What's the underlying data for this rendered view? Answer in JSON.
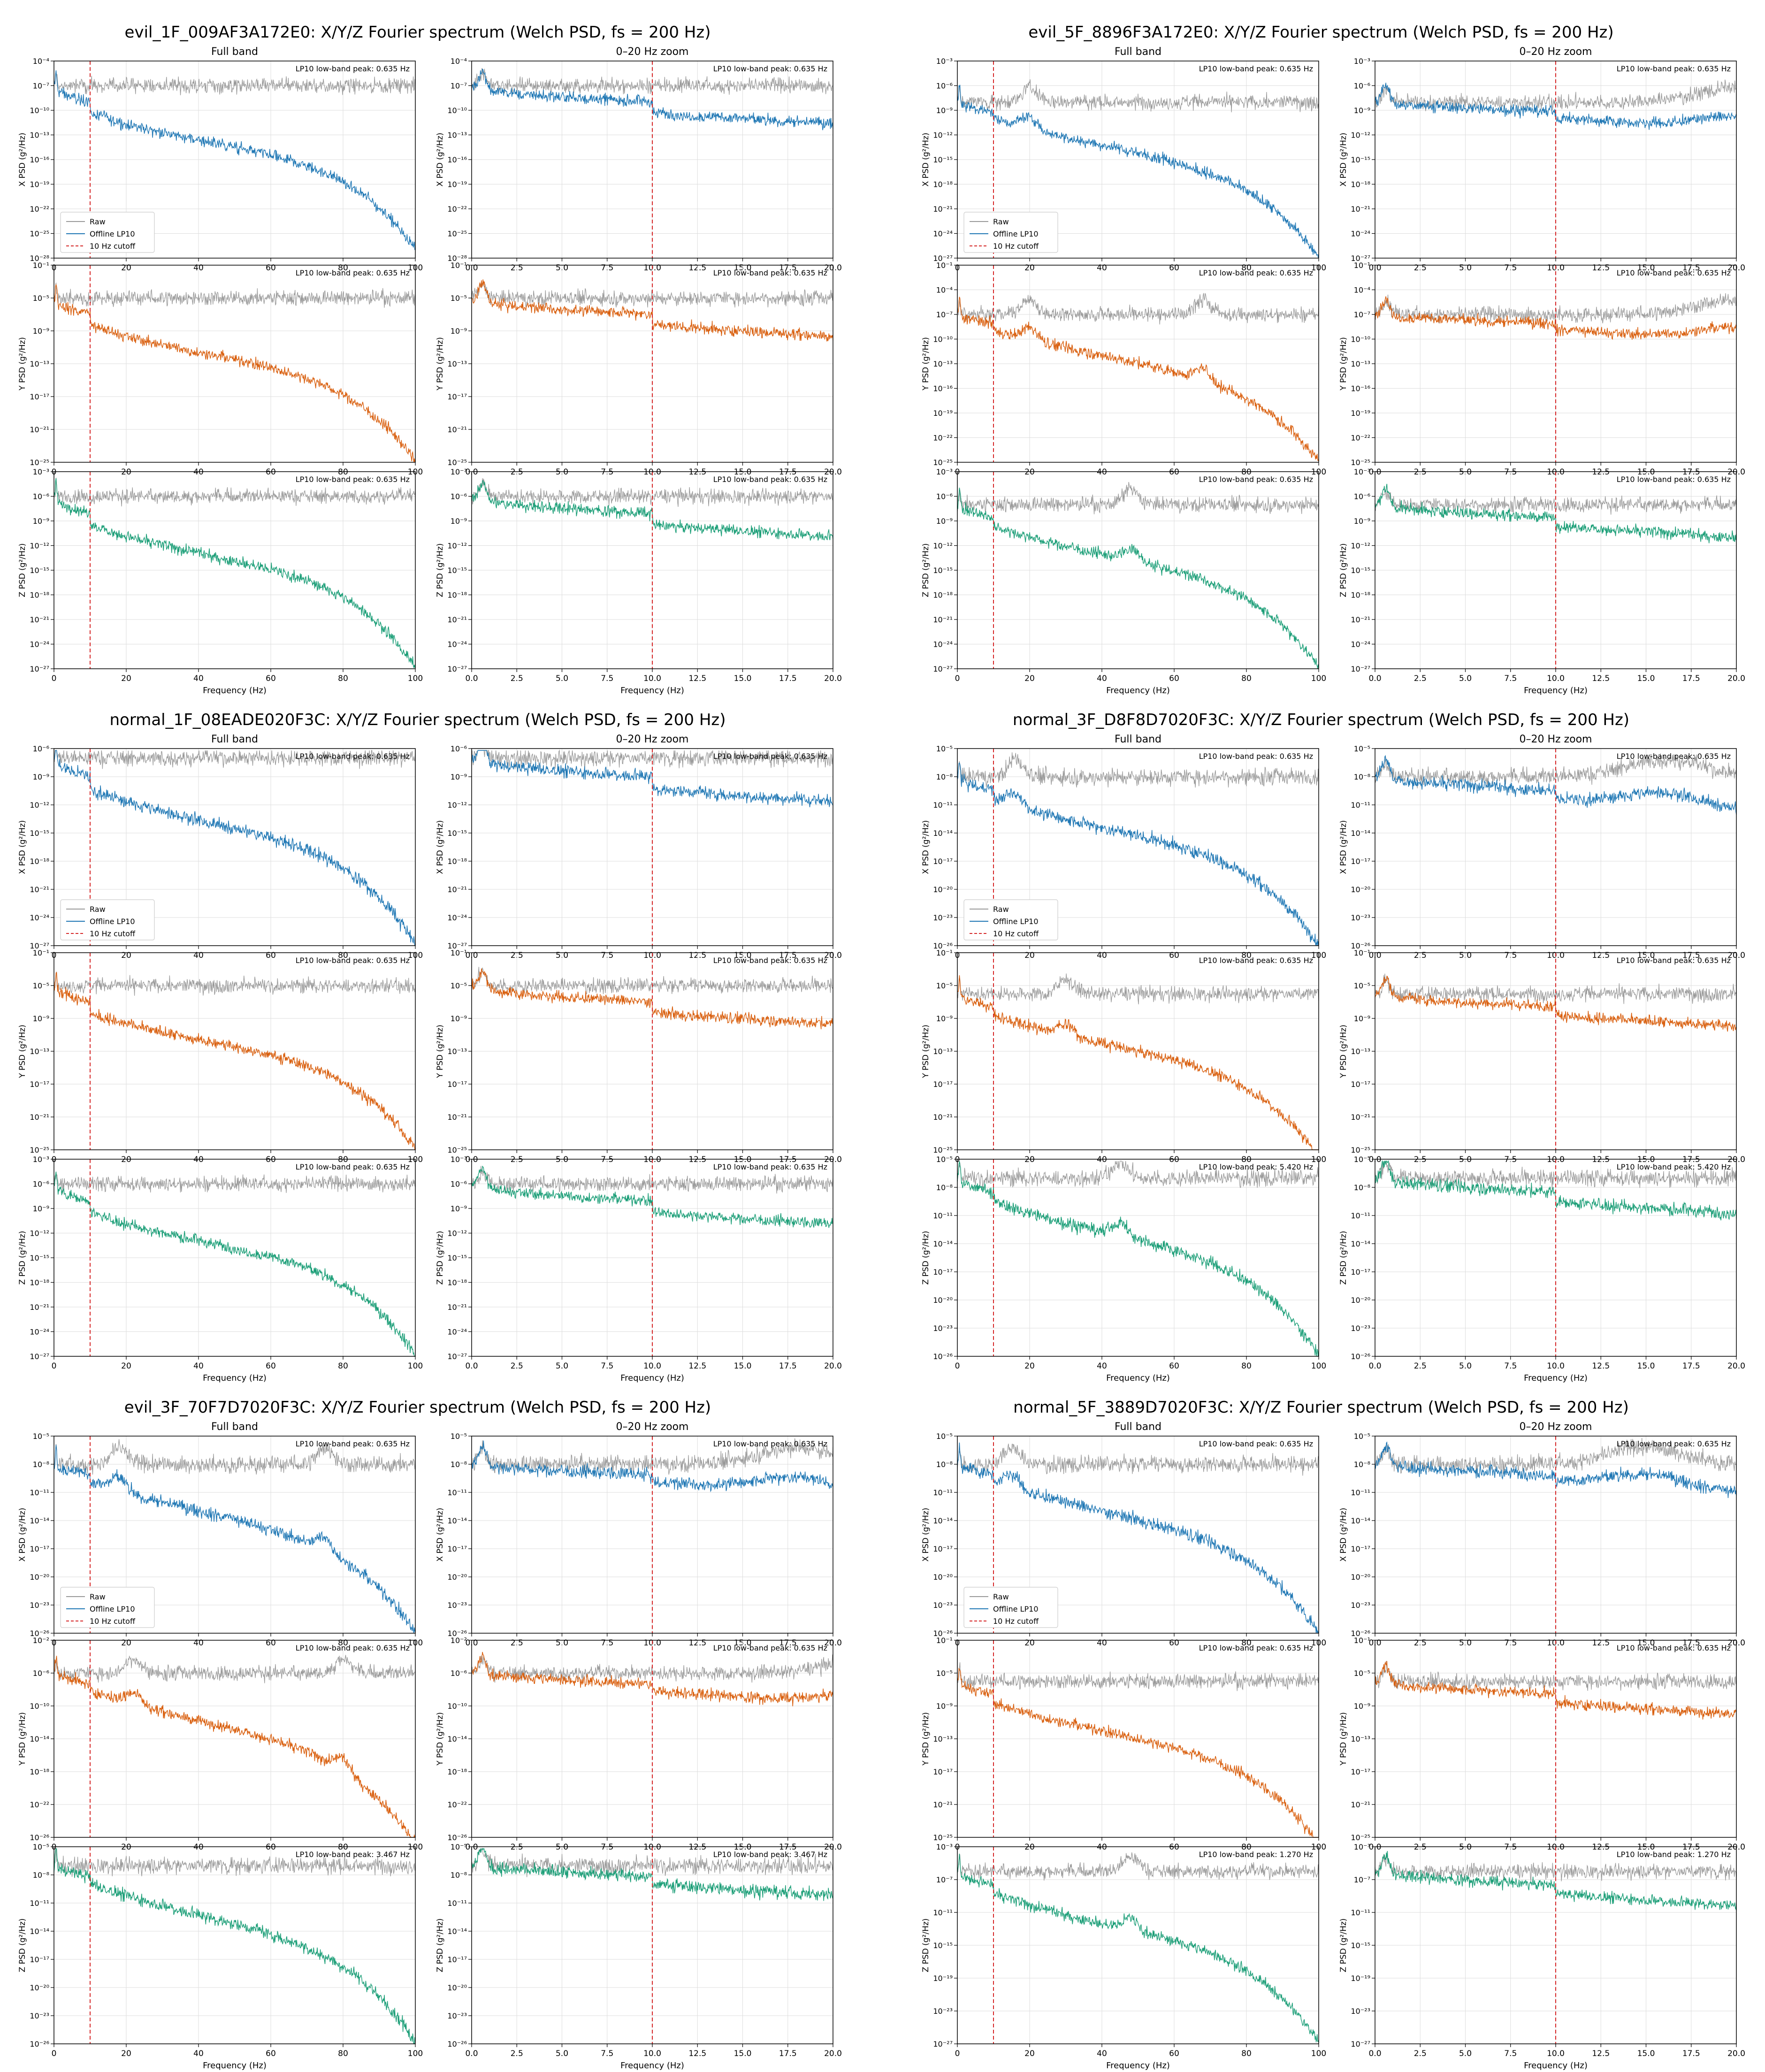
{
  "common": {
    "panel_titles": [
      "Full band",
      "0–20 Hz zoom"
    ],
    "xlabel": "Frequency (Hz)",
    "ylabels": [
      "X PSD (g²/Hz)",
      "Y PSD (g²/Hz)",
      "Z PSD (g²/Hz)"
    ],
    "legend": [
      "Raw",
      "Offline LP10",
      "10 Hz cutoff"
    ],
    "colors": {
      "raw": "#999999",
      "x": "#1f77b4",
      "y": "#d95f0e",
      "z": "#1b9e77",
      "cutoff": "#d62728",
      "grid": "#dddddd"
    },
    "full_xticks": [
      0,
      20,
      40,
      60,
      80,
      100
    ],
    "zoom_xticks": [
      "0.0",
      "2.5",
      "5.0",
      "7.5",
      "10.0",
      "12.5",
      "15.0",
      "17.5",
      "20.0"
    ],
    "cutoff_hz": 10,
    "fs_hz": 200
  },
  "chart_data": [
    {
      "type": "line",
      "title": "evil_1F_009AF3A172E0: X/Y/Z Fourier spectrum (Welch PSD, fs = 200 Hz)",
      "legend_placement": "lower-left",
      "axes": [
        {
          "channel": "X",
          "peak_label": "LP10 low-band peak: 0.635 Hz",
          "exps": [
            -4,
            -7,
            -10,
            -13,
            -16,
            -19,
            -22,
            -25,
            -28
          ],
          "raw_level": -7,
          "lp_end": -28,
          "lp_knee": 0.5,
          "bumps": []
        },
        {
          "channel": "Y",
          "peak_label": "LP10 low-band peak: 0.635 Hz",
          "exps": [
            -1,
            -5,
            -9,
            -13,
            -17,
            -21,
            -25
          ],
          "raw_level": -5,
          "lp_end": -26,
          "lp_knee": 0.5,
          "bumps": []
        },
        {
          "channel": "Z",
          "peak_label": "LP10 low-band peak: 0.635 Hz",
          "exps": [
            -3,
            -6,
            -9,
            -12,
            -15,
            -18,
            -21,
            -24,
            -27
          ],
          "raw_level": -6,
          "lp_end": -28,
          "lp_knee": 0.5,
          "bumps": []
        }
      ]
    },
    {
      "type": "line",
      "title": "evil_5F_8896F3A172E0: X/Y/Z Fourier spectrum (Welch PSD, fs = 200 Hz)",
      "legend_placement": "lower-left",
      "axes": [
        {
          "channel": "X",
          "peak_label": "LP10 low-band peak: 0.635 Hz",
          "exps": [
            -3,
            -6,
            -9,
            -12,
            -15,
            -18,
            -21,
            -24,
            -27
          ],
          "raw_level": -8,
          "lp_end": -28,
          "lp_knee": 0.7,
          "bumps": [
            20
          ]
        },
        {
          "channel": "Y",
          "peak_label": "LP10 low-band peak: 0.635 Hz",
          "exps": [
            -1,
            -4,
            -7,
            -10,
            -13,
            -16,
            -19,
            -22,
            -25
          ],
          "raw_level": -7,
          "lp_end": -26,
          "lp_knee": 0.7,
          "bumps": [
            20,
            68
          ]
        },
        {
          "channel": "Z",
          "peak_label": "LP10 low-band peak: 0.635 Hz",
          "exps": [
            -3,
            -6,
            -9,
            -12,
            -15,
            -18,
            -21,
            -24,
            -27
          ],
          "raw_level": -7,
          "lp_end": -28,
          "lp_knee": 0.6,
          "bumps": [
            48
          ]
        }
      ]
    },
    {
      "type": "line",
      "title": "normal_1F_08EADE020F3C: X/Y/Z Fourier spectrum (Welch PSD, fs = 200 Hz)",
      "legend_placement": "lower-left",
      "axes": [
        {
          "channel": "X",
          "peak_label": "LP10 low-band peak: 0.635 Hz",
          "exps": [
            -6,
            -9,
            -12,
            -15,
            -18,
            -21,
            -24,
            -27
          ],
          "raw_level": -7,
          "lp_end": -28,
          "lp_knee": 0.5,
          "bumps": []
        },
        {
          "channel": "Y",
          "peak_label": "LP10 low-band peak: 0.635 Hz",
          "exps": [
            -1,
            -5,
            -9,
            -13,
            -17,
            -21,
            -25
          ],
          "raw_level": -5,
          "lp_end": -26,
          "lp_knee": 0.5,
          "bumps": []
        },
        {
          "channel": "Z",
          "peak_label": "LP10 low-band peak: 0.635 Hz",
          "exps": [
            -3,
            -6,
            -9,
            -12,
            -15,
            -18,
            -21,
            -24,
            -27
          ],
          "raw_level": -6,
          "lp_end": -28,
          "lp_knee": 0.5,
          "bumps": []
        }
      ]
    },
    {
      "type": "line",
      "title": "normal_3F_D8F8D7020F3C: X/Y/Z Fourier spectrum (Welch PSD, fs = 200 Hz)",
      "legend_placement": "lower-left",
      "axes": [
        {
          "channel": "X",
          "peak_label": "LP10 low-band peak: 0.635 Hz",
          "exps": [
            -5,
            -8,
            -11,
            -14,
            -17,
            -20,
            -23,
            -26
          ],
          "raw_level": -8,
          "lp_end": -27,
          "lp_knee": 0.6,
          "bumps": [
            16
          ]
        },
        {
          "channel": "Y",
          "peak_label": "LP10 low-band peak: 0.635 Hz",
          "exps": [
            -1,
            -5,
            -9,
            -13,
            -17,
            -21,
            -25
          ],
          "raw_level": -6,
          "lp_end": -27,
          "lp_knee": 0.6,
          "bumps": [
            30
          ]
        },
        {
          "channel": "Z",
          "peak_label": "LP10 low-band peak: 5.420 Hz",
          "exps": [
            -5,
            -8,
            -11,
            -14,
            -17,
            -20,
            -23,
            -26
          ],
          "raw_level": -7,
          "lp_end": -27,
          "lp_knee": 0.6,
          "bumps": [
            45
          ]
        }
      ]
    },
    {
      "type": "line",
      "title": "evil_3F_70F7D7020F3C: X/Y/Z Fourier spectrum (Welch PSD, fs = 200 Hz)",
      "legend_placement": "lower-left",
      "axes": [
        {
          "channel": "X",
          "peak_label": "LP10 low-band peak: 0.635 Hz",
          "exps": [
            -5,
            -8,
            -11,
            -14,
            -17,
            -20,
            -23,
            -26
          ],
          "raw_level": -8,
          "lp_end": -27,
          "lp_knee": 0.7,
          "bumps": [
            18,
            75
          ]
        },
        {
          "channel": "Y",
          "peak_label": "LP10 low-band peak: 0.635 Hz",
          "exps": [
            -2,
            -6,
            -10,
            -14,
            -18,
            -22,
            -26
          ],
          "raw_level": -6,
          "lp_end": -28,
          "lp_knee": 0.7,
          "bumps": [
            22,
            80
          ]
        },
        {
          "channel": "Z",
          "peak_label": "LP10 low-band peak: 3.467 Hz",
          "exps": [
            -5,
            -8,
            -11,
            -14,
            -17,
            -20,
            -23,
            -26
          ],
          "raw_level": -7,
          "lp_end": -27,
          "lp_knee": 0.7,
          "bumps": []
        }
      ]
    },
    {
      "type": "line",
      "title": "normal_5F_3889D7020F3C: X/Y/Z Fourier spectrum (Welch PSD, fs = 200 Hz)",
      "legend_placement": "lower-left",
      "axes": [
        {
          "channel": "X",
          "peak_label": "LP10 low-band peak: 0.635 Hz",
          "exps": [
            -5,
            -8,
            -11,
            -14,
            -17,
            -20,
            -23,
            -26
          ],
          "raw_level": -8,
          "lp_end": -27,
          "lp_knee": 0.7,
          "bumps": [
            15
          ]
        },
        {
          "channel": "Y",
          "peak_label": "LP10 low-band peak: 0.635 Hz",
          "exps": [
            -1,
            -5,
            -9,
            -13,
            -17,
            -21,
            -25
          ],
          "raw_level": -6,
          "lp_end": -27,
          "lp_knee": 0.6,
          "bumps": []
        },
        {
          "channel": "Z",
          "peak_label": "LP10 low-band peak: 1.270 Hz",
          "exps": [
            -3,
            -7,
            -11,
            -15,
            -19,
            -23,
            -27
          ],
          "raw_level": -6,
          "lp_end": -28,
          "lp_knee": 0.6,
          "bumps": [
            48
          ]
        }
      ]
    }
  ]
}
